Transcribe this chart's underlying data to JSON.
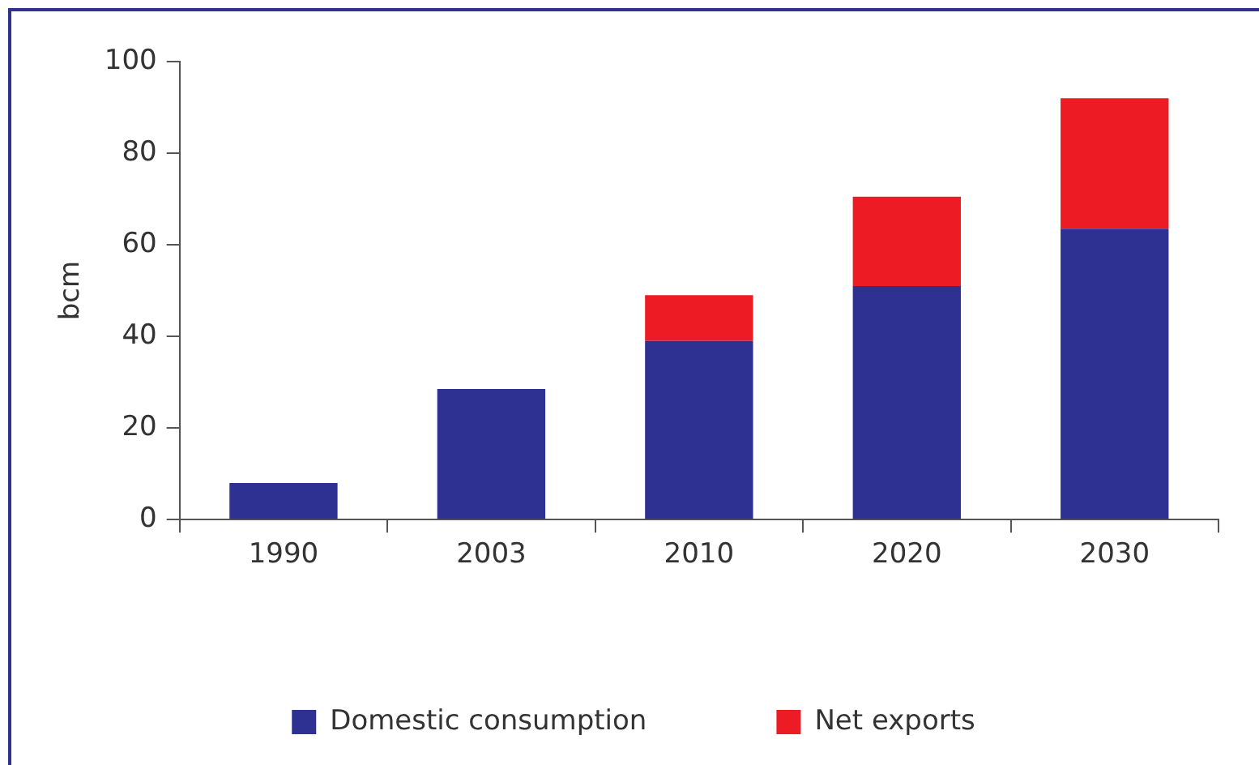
{
  "chart_data": {
    "type": "bar",
    "stacked": true,
    "ylabel": "bcm",
    "categories": [
      "1990",
      "2003",
      "2010",
      "2020",
      "2030"
    ],
    "series": [
      {
        "name": "Domestic consumption",
        "color": "#2e3192",
        "values": [
          8,
          28.5,
          39,
          51,
          63.5
        ]
      },
      {
        "name": "Net exports",
        "color": "#ed1c24",
        "values": [
          null,
          null,
          10,
          19.5,
          28.5
        ]
      }
    ],
    "ylim": [
      0,
      100
    ],
    "yticks": [
      0,
      20,
      40,
      60,
      80,
      100
    ],
    "grid": false,
    "legend": "bottom"
  }
}
